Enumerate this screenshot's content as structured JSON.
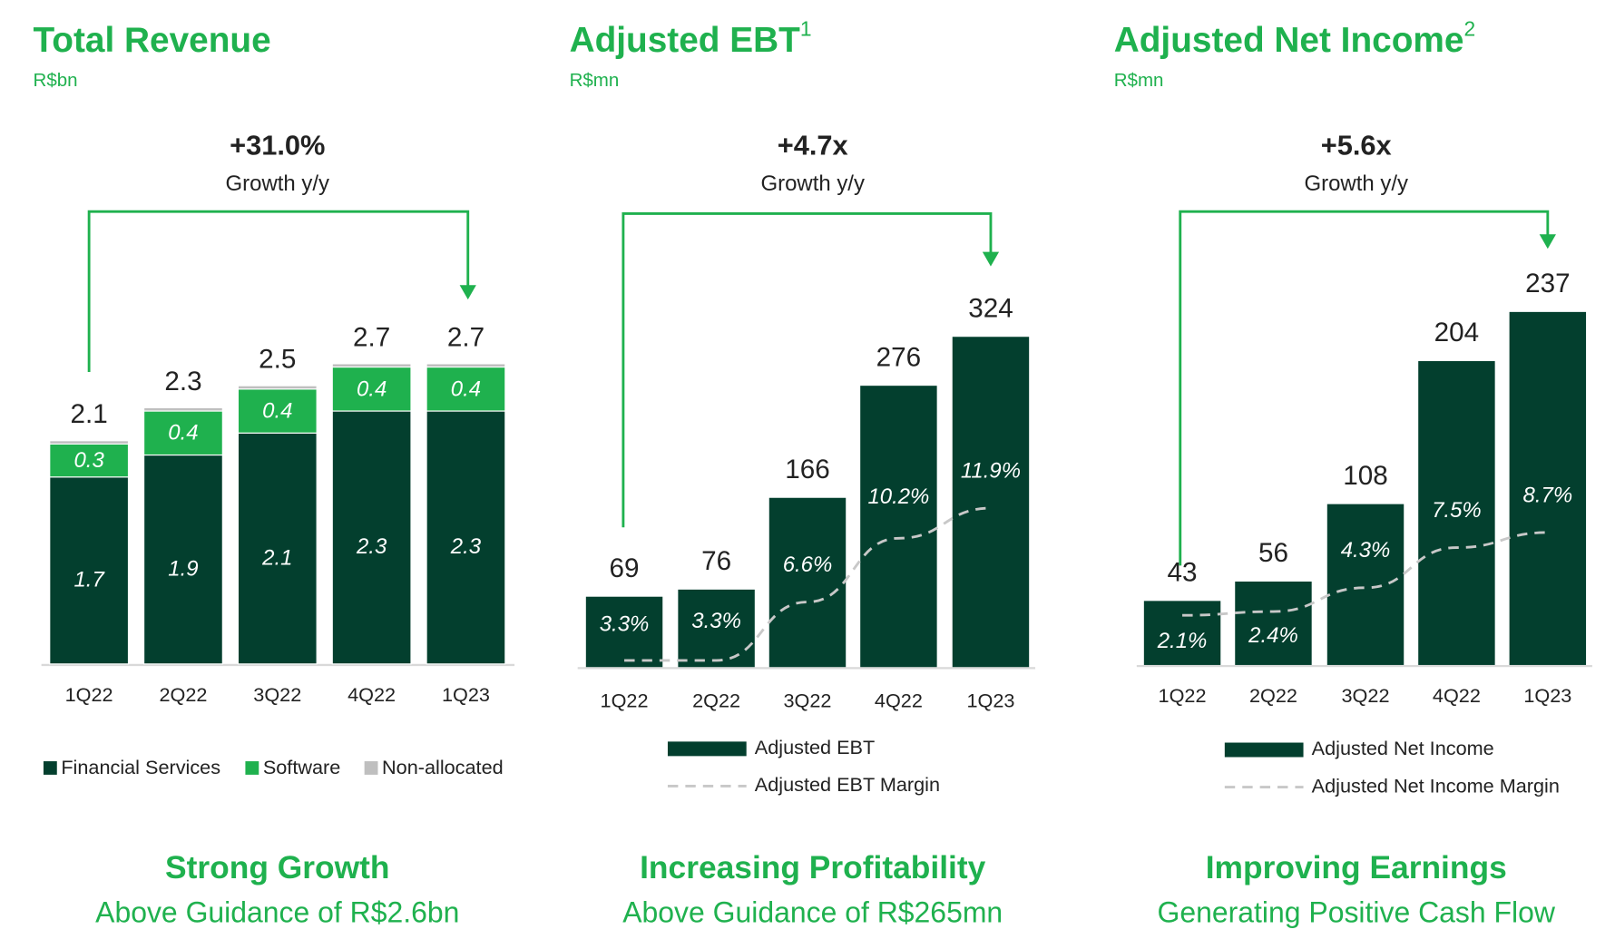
{
  "chart_data": [
    {
      "type": "stacked_bar",
      "title": "Total Revenue",
      "subtitle": "R$bn",
      "annotation": {
        "value": "+31.0%",
        "label": "Growth y/y"
      },
      "categories": [
        "1Q22",
        "2Q22",
        "3Q22",
        "4Q22",
        "1Q23"
      ],
      "series": [
        {
          "name": "Financial Services",
          "color": "#033f2e",
          "values": [
            1.7,
            1.9,
            2.1,
            2.3,
            2.3
          ]
        },
        {
          "name": "Software",
          "color": "#1fb14e",
          "values": [
            0.3,
            0.4,
            0.4,
            0.4,
            0.4
          ]
        },
        {
          "name": "Non-allocated",
          "color": "#bfbfbf",
          "values": [
            0.03,
            0.03,
            0.03,
            0.03,
            0.03
          ]
        }
      ],
      "totals": [
        2.1,
        2.3,
        2.5,
        2.7,
        2.7
      ],
      "footer": {
        "title": "Strong Growth",
        "subtitle": "Above Guidance of R$2.6bn"
      }
    },
    {
      "type": "bar_line",
      "title": "Adjusted EBT",
      "title_note": "1",
      "subtitle": "R$mn",
      "annotation": {
        "value": "+4.7x",
        "label": "Growth y/y"
      },
      "categories": [
        "1Q22",
        "2Q22",
        "3Q22",
        "4Q22",
        "1Q23"
      ],
      "series": [
        {
          "name": "Adjusted EBT",
          "color": "#033f2e",
          "values": [
            69,
            76,
            166,
            276,
            324
          ]
        },
        {
          "name": "Adjusted EBT Margin",
          "color": "#c8c8c8",
          "axis": "y2",
          "values": [
            3.3,
            3.3,
            6.6,
            10.2,
            11.9
          ],
          "value_labels": [
            "3.3%",
            "3.3%",
            "6.6%",
            "10.2%",
            "11.9%"
          ]
        }
      ],
      "footer": {
        "title": "Increasing Profitability",
        "subtitle": "Above Guidance of R$265mn"
      }
    },
    {
      "type": "bar_line",
      "title": "Adjusted Net Income",
      "title_note": "2",
      "subtitle": "R$mn",
      "annotation": {
        "value": "+5.6x",
        "label": "Growth y/y"
      },
      "categories": [
        "1Q22",
        "2Q22",
        "3Q22",
        "4Q22",
        "1Q23"
      ],
      "series": [
        {
          "name": "Adjusted Net Income",
          "color": "#033f2e",
          "values": [
            43,
            56,
            108,
            204,
            237
          ]
        },
        {
          "name": "Adjusted Net Income Margin",
          "color": "#c8c8c8",
          "axis": "y2",
          "values": [
            2.1,
            2.4,
            4.3,
            7.5,
            8.7
          ],
          "value_labels": [
            "2.1%",
            "2.4%",
            "4.3%",
            "7.5%",
            "8.7%"
          ]
        }
      ],
      "footer": {
        "title": "Improving Earnings",
        "subtitle": "Generating Positive Cash Flow"
      }
    }
  ]
}
